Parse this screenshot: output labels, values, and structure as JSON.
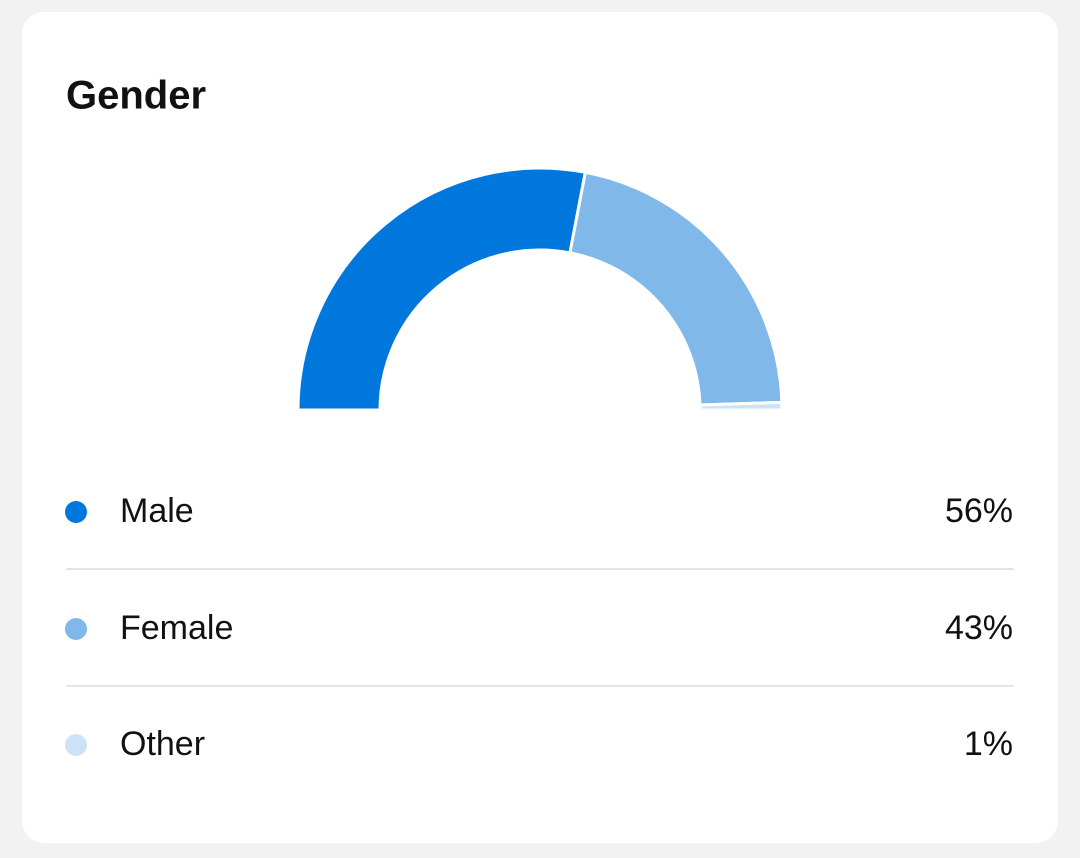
{
  "chart_data": {
    "type": "donut",
    "title": "Gender",
    "categories": [
      "Male",
      "Female",
      "Other"
    ],
    "values": [
      56,
      43,
      1
    ],
    "value_labels": [
      "56%",
      "43%",
      "1%"
    ],
    "colors": [
      "#0077dd",
      "#80b8ea",
      "#cce3f7"
    ]
  }
}
